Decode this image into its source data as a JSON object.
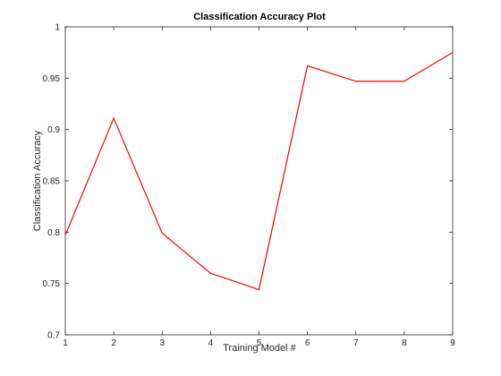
{
  "chart_data": {
    "type": "line",
    "title": "Classification Accuracy Plot",
    "xlabel": "Training Model #",
    "ylabel": "Classification Accuracy",
    "xlim": [
      1,
      9
    ],
    "ylim": [
      0.7,
      1
    ],
    "x": [
      1,
      2,
      3,
      4,
      5,
      6,
      7,
      8,
      9
    ],
    "xticks": [
      1,
      2,
      3,
      4,
      5,
      6,
      7,
      8,
      9
    ],
    "xtick_labels": [
      "1",
      "2",
      "3",
      "4",
      "5",
      "6",
      "7",
      "8",
      "9"
    ],
    "yticks": [
      0.7,
      0.75,
      0.8,
      0.85,
      0.9,
      0.95,
      1
    ],
    "ytick_labels": [
      "0.7",
      "0.75",
      "0.8",
      "0.85",
      "0.9",
      "0.95",
      "1"
    ],
    "grid": false,
    "series": [
      {
        "color": "#ff0000",
        "values": [
          0.797,
          0.911,
          0.799,
          0.76,
          0.744,
          0.962,
          0.947,
          0.947,
          0.975
        ]
      }
    ]
  }
}
